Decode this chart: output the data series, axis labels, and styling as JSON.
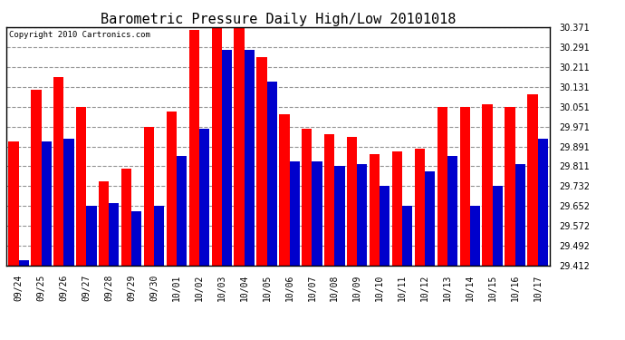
{
  "title": "Barometric Pressure Daily High/Low 20101018",
  "copyright": "Copyright 2010 Cartronics.com",
  "dates": [
    "09/24",
    "09/25",
    "09/26",
    "09/27",
    "09/28",
    "09/29",
    "09/30",
    "10/01",
    "10/02",
    "10/03",
    "10/04",
    "10/05",
    "10/06",
    "10/07",
    "10/08",
    "10/09",
    "10/10",
    "10/11",
    "10/12",
    "10/13",
    "10/14",
    "10/15",
    "10/16",
    "10/17"
  ],
  "highs": [
    29.911,
    30.121,
    30.171,
    30.051,
    29.751,
    29.801,
    29.971,
    30.031,
    30.361,
    30.371,
    30.371,
    30.251,
    30.021,
    29.961,
    29.941,
    29.931,
    29.861,
    29.871,
    29.881,
    30.051,
    30.051,
    30.061,
    30.051,
    30.101
  ],
  "lows": [
    29.431,
    29.911,
    29.921,
    29.651,
    29.661,
    29.631,
    29.651,
    29.851,
    29.961,
    30.281,
    30.281,
    30.151,
    29.831,
    29.831,
    29.811,
    29.821,
    29.731,
    29.651,
    29.791,
    29.851,
    29.651,
    29.731,
    29.821,
    29.921
  ],
  "ylim_min": 29.412,
  "ylim_max": 30.371,
  "yticks": [
    29.412,
    29.492,
    29.572,
    29.652,
    29.732,
    29.811,
    29.891,
    29.971,
    30.051,
    30.131,
    30.211,
    30.291,
    30.371
  ],
  "bar_color_high": "#ff0000",
  "bar_color_low": "#0000cc",
  "bg_color": "#ffffff",
  "grid_color": "#888888",
  "title_fontsize": 11,
  "copyright_fontsize": 6.5,
  "tick_fontsize": 7
}
